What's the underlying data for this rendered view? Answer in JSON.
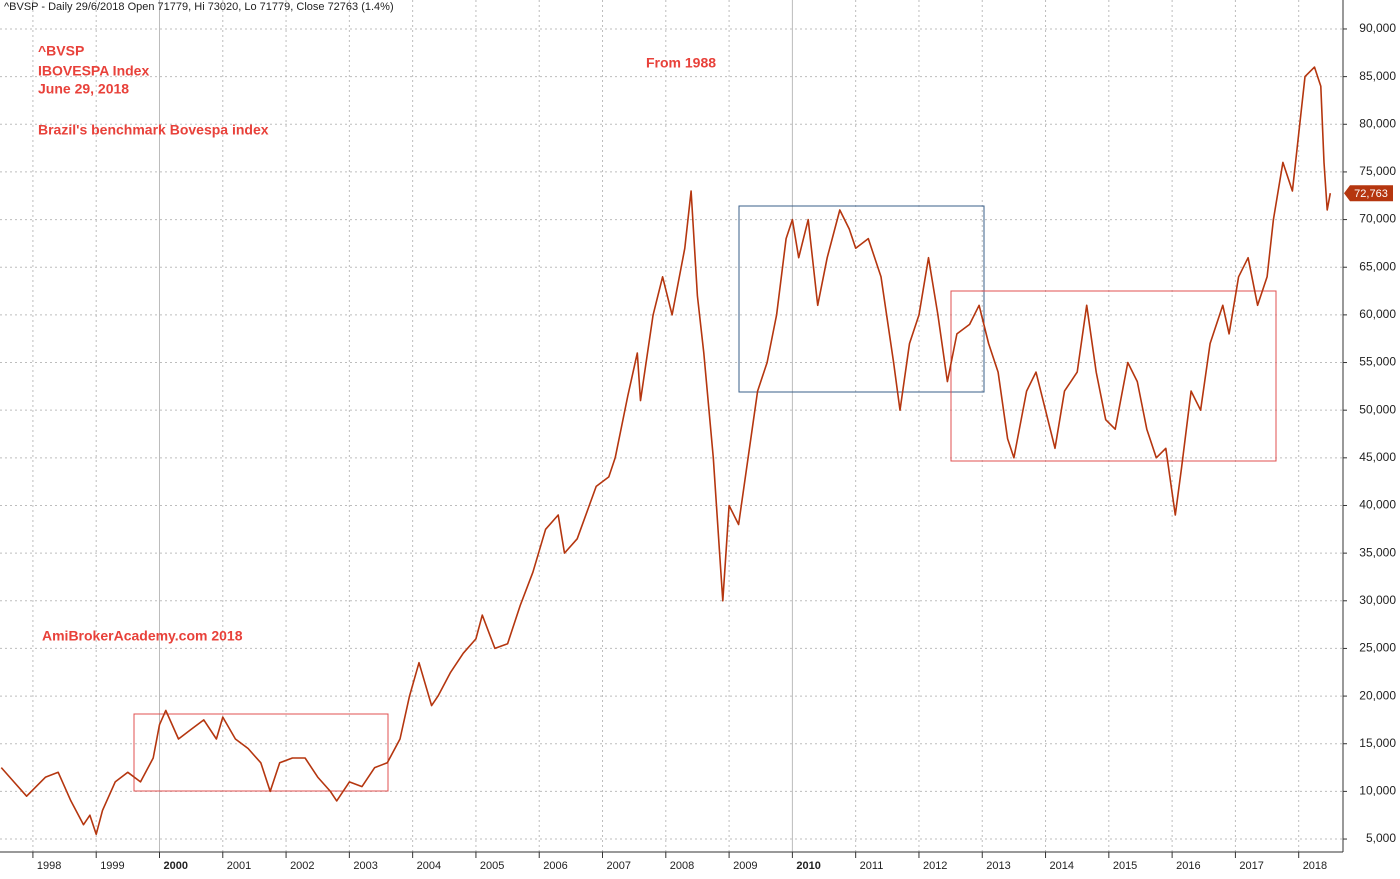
{
  "chart_data": {
    "type": "line",
    "title": "^BVSP - Daily 29/6/2018 Open 71779, Hi 73020, Lo 71779, Close 72763 (1.4%)",
    "annotations": [
      "^BVSP",
      "IBOVESPA Index",
      "June 29, 2018",
      "Brazil's benchmark Bovespa index",
      "From 1988",
      "AmiBrokerAcademy.com  2018"
    ],
    "xlim": [
      1997.48,
      2018.7
    ],
    "xticks": [
      1998,
      1999,
      2000,
      2001,
      2002,
      2003,
      2004,
      2005,
      2006,
      2007,
      2008,
      2009,
      2010,
      2011,
      2012,
      2013,
      2014,
      2015,
      2016,
      2017,
      2018
    ],
    "ylim": [
      3640,
      93040
    ],
    "yticks": [
      {
        "value": 5000,
        "label": "5,000"
      },
      {
        "value": 10000,
        "label": "10,000"
      },
      {
        "value": 15000,
        "label": "15,000"
      },
      {
        "value": 20000,
        "label": "20,000"
      },
      {
        "value": 25000,
        "label": "25,000"
      },
      {
        "value": 30000,
        "label": "30,000"
      },
      {
        "value": 35000,
        "label": "35,000"
      },
      {
        "value": 40000,
        "label": "40,000"
      },
      {
        "value": 45000,
        "label": "45,000"
      },
      {
        "value": 50000,
        "label": "50,000"
      },
      {
        "value": 55000,
        "label": "55,000"
      },
      {
        "value": 60000,
        "label": "60,000"
      },
      {
        "value": 65000,
        "label": "65,000"
      },
      {
        "value": 70000,
        "label": "70,000"
      },
      {
        "value": 75000,
        "label": "75,000"
      },
      {
        "value": 80000,
        "label": "80,000"
      },
      {
        "value": 85000,
        "label": "85,000"
      },
      {
        "value": 90000,
        "label": "90,000"
      }
    ],
    "grid": true,
    "close_label": {
      "value": 72763,
      "label": "72,763"
    },
    "series": [
      {
        "name": "^BVSP",
        "color": "#b5360f",
        "x": [
          1997.5,
          1997.7,
          1997.9,
          1998.2,
          1998.4,
          1998.6,
          1998.8,
          1998.9,
          1999.0,
          1999.1,
          1999.3,
          1999.5,
          1999.7,
          1999.9,
          2000.0,
          2000.1,
          2000.3,
          2000.5,
          2000.7,
          2000.9,
          2001.0,
          2001.2,
          2001.4,
          2001.6,
          2001.75,
          2001.9,
          2002.1,
          2002.3,
          2002.5,
          2002.7,
          2002.8,
          2003.0,
          2003.2,
          2003.4,
          2003.6,
          2003.8,
          2003.95,
          2004.1,
          2004.3,
          2004.4,
          2004.6,
          2004.8,
          2005.0,
          2005.1,
          2005.3,
          2005.5,
          2005.7,
          2005.9,
          2006.1,
          2006.3,
          2006.4,
          2006.6,
          2006.9,
          2007.1,
          2007.2,
          2007.4,
          2007.55,
          2007.6,
          2007.8,
          2007.95,
          2008.1,
          2008.3,
          2008.4,
          2008.5,
          2008.6,
          2008.75,
          2008.85,
          2008.9,
          2009.0,
          2009.15,
          2009.3,
          2009.45,
          2009.6,
          2009.75,
          2009.9,
          2010.0,
          2010.1,
          2010.25,
          2010.4,
          2010.55,
          2010.75,
          2010.9,
          2011.0,
          2011.2,
          2011.4,
          2011.6,
          2011.7,
          2011.85,
          2012.0,
          2012.15,
          2012.3,
          2012.45,
          2012.6,
          2012.8,
          2012.95,
          2013.1,
          2013.25,
          2013.4,
          2013.5,
          2013.7,
          2013.85,
          2014.0,
          2014.15,
          2014.3,
          2014.5,
          2014.65,
          2014.8,
          2014.95,
          2015.1,
          2015.3,
          2015.45,
          2015.6,
          2015.75,
          2015.9,
          2016.05,
          2016.15,
          2016.3,
          2016.45,
          2016.6,
          2016.8,
          2016.9,
          2017.05,
          2017.2,
          2017.35,
          2017.5,
          2017.6,
          2017.75,
          2017.9,
          2018.0,
          2018.1,
          2018.25,
          2018.35,
          2018.4,
          2018.45,
          2018.5
        ],
        "values": [
          12500,
          11000,
          9500,
          11500,
          12000,
          9000,
          6500,
          7500,
          5500,
          8000,
          11000,
          12000,
          11000,
          13500,
          17000,
          18500,
          15500,
          16500,
          17500,
          15500,
          17800,
          15500,
          14500,
          13000,
          10000,
          13000,
          13500,
          13500,
          11500,
          10000,
          9000,
          11000,
          10500,
          12500,
          13000,
          15500,
          20000,
          23500,
          19000,
          20000,
          22500,
          24500,
          26000,
          28500,
          25000,
          25500,
          29500,
          33000,
          37500,
          39000,
          35000,
          36500,
          42000,
          43000,
          45000,
          51500,
          56000,
          51000,
          60000,
          64000,
          60000,
          67000,
          73000,
          62000,
          56000,
          45000,
          35000,
          30000,
          40000,
          38000,
          45000,
          52000,
          55000,
          60000,
          68000,
          70000,
          66000,
          70000,
          61000,
          66000,
          71000,
          69000,
          67000,
          68000,
          64000,
          55000,
          50000,
          57000,
          60000,
          66000,
          60000,
          53000,
          58000,
          59000,
          61000,
          57000,
          54000,
          47000,
          45000,
          52000,
          54000,
          50000,
          46000,
          52000,
          54000,
          61000,
          54000,
          49000,
          48000,
          55000,
          53000,
          48000,
          45000,
          46000,
          39000,
          44000,
          52000,
          50000,
          57000,
          61000,
          58000,
          64000,
          66000,
          61000,
          64000,
          70000,
          76000,
          73000,
          79000,
          85000,
          86000,
          84000,
          76000,
          71000,
          72763
        ]
      }
    ]
  }
}
